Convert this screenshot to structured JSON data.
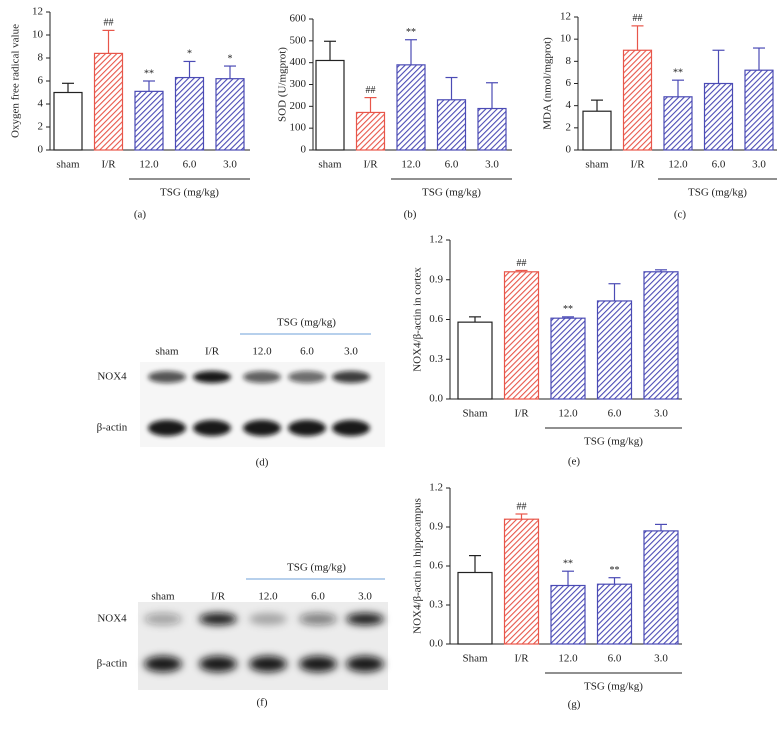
{
  "chart_data": [
    {
      "type": "bar",
      "panel_label": "(a)",
      "y_label": "Oxygen free radical value",
      "group_label": "TSG (mg/kg)",
      "categories": [
        "sham",
        "I/R",
        "12.0",
        "6.0",
        "3.0"
      ],
      "values": [
        5.0,
        8.4,
        5.1,
        6.3,
        6.2
      ],
      "errors": [
        0.8,
        2.0,
        0.9,
        1.4,
        1.1
      ],
      "annotations": [
        null,
        "##",
        "**",
        "*",
        "*"
      ],
      "colors": [
        "#ffffff",
        "#e8564a",
        "#4b4bb5",
        "#4b4bb5",
        "#4b4bb5"
      ],
      "hatch": [
        false,
        true,
        true,
        true,
        true
      ],
      "ylim": [
        0,
        12
      ],
      "yticks": [
        0,
        2,
        4,
        6,
        8,
        10,
        12
      ]
    },
    {
      "type": "bar",
      "panel_label": "(b)",
      "y_label": "SOD (U/mgprot)",
      "group_label": "TSG (mg/kg)",
      "categories": [
        "sham",
        "I/R",
        "12.0",
        "6.0",
        "3.0"
      ],
      "values": [
        410,
        172,
        390,
        230,
        190
      ],
      "errors": [
        88,
        68,
        115,
        102,
        118
      ],
      "annotations": [
        null,
        "##",
        "**",
        null,
        null
      ],
      "colors": [
        "#ffffff",
        "#e8564a",
        "#4b4bb5",
        "#4b4bb5",
        "#4b4bb5"
      ],
      "hatch": [
        false,
        true,
        true,
        true,
        true
      ],
      "ylim": [
        0,
        600
      ],
      "yticks": [
        0,
        100,
        200,
        300,
        400,
        500,
        600
      ]
    },
    {
      "type": "bar",
      "panel_label": "(c)",
      "y_label": "MDA (nmol/mgprot)",
      "group_label": "TSG (mg/kg)",
      "categories": [
        "sham",
        "I/R",
        "12.0",
        "6.0",
        "3.0"
      ],
      "values": [
        3.5,
        9.0,
        4.8,
        6.0,
        7.2
      ],
      "errors": [
        1.0,
        2.2,
        1.5,
        3.0,
        2.0
      ],
      "annotations": [
        null,
        "##",
        "**",
        null,
        null
      ],
      "colors": [
        "#ffffff",
        "#e8564a",
        "#4b4bb5",
        "#4b4bb5",
        "#4b4bb5"
      ],
      "hatch": [
        false,
        true,
        true,
        true,
        true
      ],
      "ylim": [
        0,
        12
      ],
      "yticks": [
        0,
        2,
        4,
        6,
        8,
        10,
        12
      ]
    },
    {
      "type": "bar",
      "panel_label": "(e)",
      "y_label": "NOX4/β-actin in cortex",
      "group_label": "TSG (mg/kg)",
      "categories": [
        "Sham",
        "I/R",
        "12.0",
        "6.0",
        "3.0"
      ],
      "values": [
        0.58,
        0.96,
        0.61,
        0.74,
        0.96
      ],
      "errors": [
        0.04,
        0.01,
        0.01,
        0.13,
        0.015
      ],
      "annotations": [
        null,
        "##",
        "**",
        null,
        null
      ],
      "colors": [
        "#ffffff",
        "#e8564a",
        "#4b4bb5",
        "#4b4bb5",
        "#4b4bb5"
      ],
      "hatch": [
        false,
        true,
        true,
        true,
        true
      ],
      "ylim": [
        0,
        1.2
      ],
      "yticks": [
        {
          "value": 0,
          "label": "0.0"
        },
        0.3,
        0.6,
        0.9,
        1.2
      ]
    },
    {
      "type": "bar",
      "panel_label": "(g)",
      "y_label": "NOX4/β-actin in hippocampus",
      "group_label": "TSG (mg/kg)",
      "categories": [
        "Sham",
        "I/R",
        "12.0",
        "6.0",
        "3.0"
      ],
      "values": [
        0.55,
        0.96,
        0.45,
        0.46,
        0.87
      ],
      "errors": [
        0.13,
        0.04,
        0.11,
        0.05,
        0.05
      ],
      "annotations": [
        null,
        "##",
        "**",
        "**",
        null
      ],
      "colors": [
        "#ffffff",
        "#e8564a",
        "#4b4bb5",
        "#4b4bb5",
        "#4b4bb5"
      ],
      "hatch": [
        false,
        true,
        true,
        true,
        true
      ],
      "ylim": [
        0,
        1.2
      ],
      "yticks": [
        {
          "value": 0,
          "label": "0.0"
        },
        0.3,
        0.6,
        0.9,
        1.2
      ]
    }
  ],
  "blots": [
    {
      "panel_label": "(d)",
      "group_label": "TSG (mg/kg)",
      "lanes": [
        "sham",
        "I/R",
        "12.0",
        "6.0",
        "3.0"
      ],
      "rows": [
        "NOX4",
        "β-actin"
      ]
    },
    {
      "panel_label": "(f)",
      "group_label": "TSG (mg/kg)",
      "lanes": [
        "sham",
        "I/R",
        "12.0",
        "6.0",
        "3.0"
      ],
      "rows": [
        "NOX4",
        "β-actin"
      ]
    }
  ]
}
